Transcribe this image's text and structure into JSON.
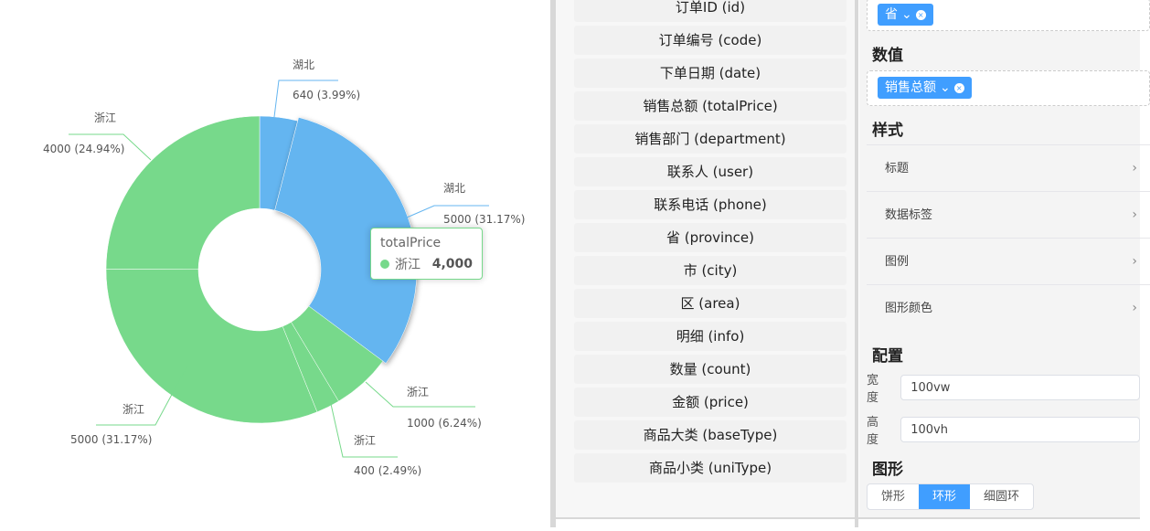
{
  "chart_data": {
    "type": "pie",
    "variant": "donut",
    "slices": [
      {
        "name": "湖北",
        "value": 640,
        "percent": "3.99%",
        "label_value": "640 (3.99%)",
        "color": "#64b5f0"
      },
      {
        "name": "湖北",
        "value": 5000,
        "percent": "31.17%",
        "label_value": "5000 (31.17%)",
        "color": "#64b5f0",
        "highlighted": true
      },
      {
        "name": "浙江",
        "value": 1000,
        "percent": "6.24%",
        "label_value": "1000 (6.24%)",
        "color": "#77d98b"
      },
      {
        "name": "浙江",
        "value": 400,
        "percent": "2.49%",
        "label_value": "400 (2.49%)",
        "color": "#77d98b"
      },
      {
        "name": "浙江",
        "value": 5000,
        "percent": "31.17%",
        "label_value": "5000 (31.17%)",
        "color": "#77d98b"
      },
      {
        "name": "浙江",
        "value": 4000,
        "percent": "24.94%",
        "label_value": "4000 (24.94%)",
        "color": "#77d98b"
      }
    ],
    "tooltip": {
      "title": "totalPrice",
      "name": "浙江",
      "value": "4,000",
      "color": "#77d98b"
    }
  },
  "fields": [
    "订单ID (id)",
    "订单编号 (code)",
    "下单日期 (date)",
    "销售总额 (totalPrice)",
    "销售部门 (department)",
    "联系人 (user)",
    "联系电话 (phone)",
    "省 (province)",
    "市 (city)",
    "区 (area)",
    "明细 (info)",
    "数量 (count)",
    "金额 (price)",
    "商品大类 (baseType)",
    "商品小类 (uniType)"
  ],
  "settings": {
    "dimension_tag": "省",
    "value_title": "数值",
    "value_tag": "销售总额",
    "style_title": "样式",
    "style_items": [
      "标题",
      "数据标签",
      "图例",
      "图形颜色"
    ],
    "config_title": "配置",
    "width_label": "宽度",
    "width_value": "100vw",
    "height_label": "高度",
    "height_value": "100vh",
    "shape_title": "图形",
    "shape_options": [
      "饼形",
      "环形",
      "细圆环"
    ],
    "shape_selected": "环形",
    "accent": "#409eff"
  }
}
